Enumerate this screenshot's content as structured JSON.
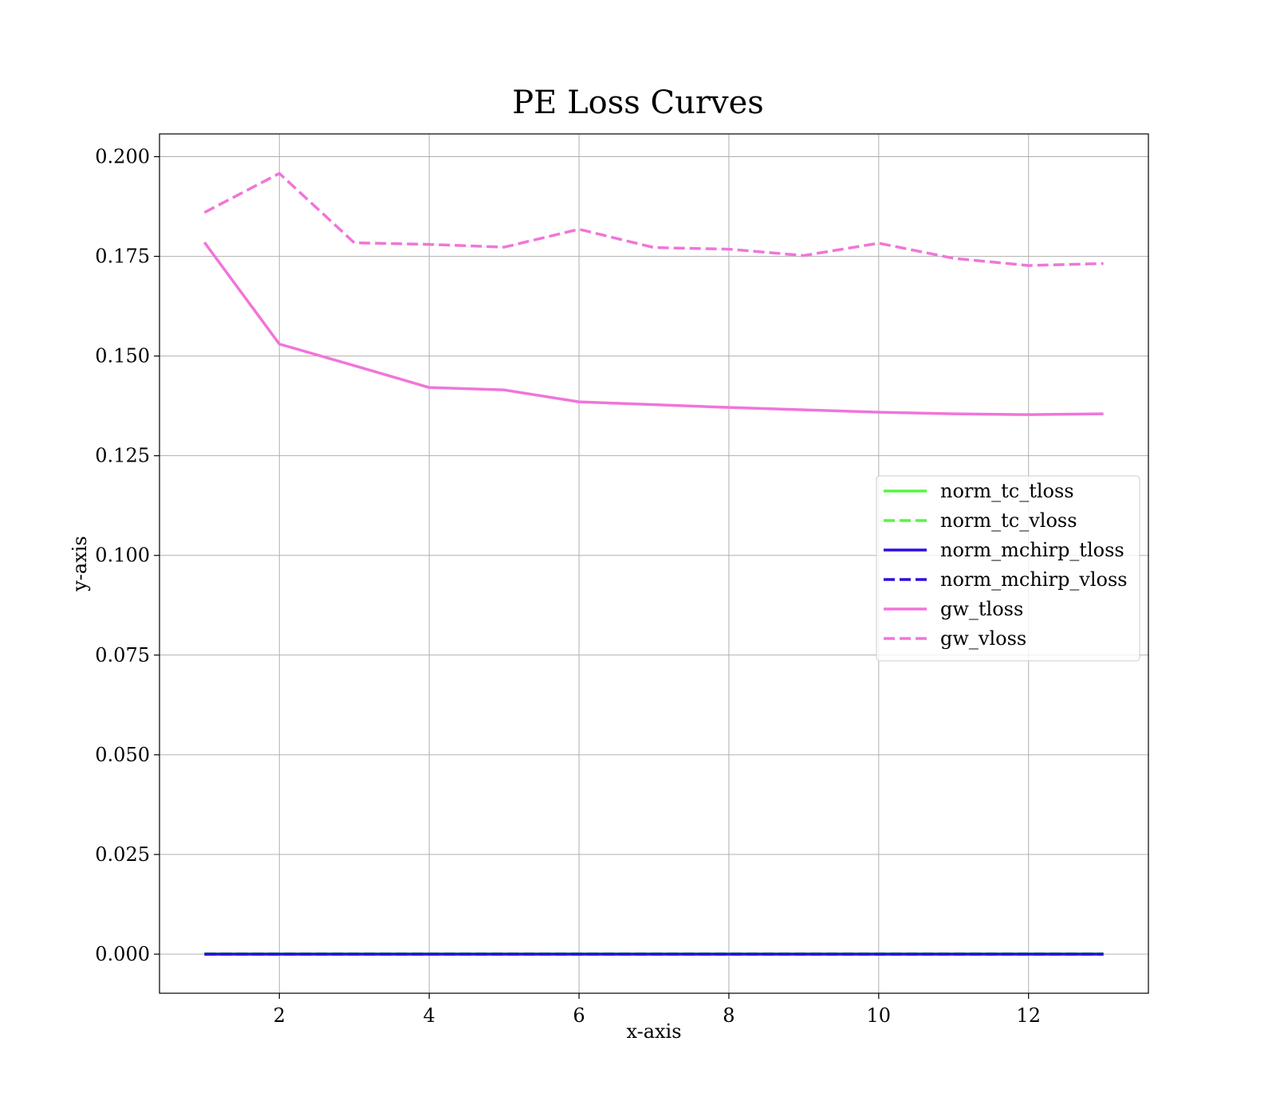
{
  "chart_data": {
    "type": "line",
    "title": "PE Loss Curves",
    "xlabel": "x-axis",
    "ylabel": "y-axis",
    "xlim": [
      0.4,
      13.6
    ],
    "ylim": [
      -0.0098,
      0.2057
    ],
    "xticks": [
      2,
      4,
      6,
      8,
      10,
      12
    ],
    "xtick_labels": [
      "2",
      "4",
      "6",
      "8",
      "10",
      "12"
    ],
    "yticks": [
      0,
      0.025,
      0.05,
      0.075,
      0.1,
      0.125,
      0.15,
      0.175,
      0.2
    ],
    "ytick_labels": [
      "0.000",
      "0.025",
      "0.050",
      "0.075",
      "0.100",
      "0.125",
      "0.150",
      "0.175",
      "0.200"
    ],
    "grid": true,
    "legend_position": "center-right",
    "x": [
      1,
      2,
      3,
      4,
      5,
      6,
      7,
      8,
      9,
      10,
      11,
      12,
      13
    ],
    "series": [
      {
        "name": "norm_tc_tloss",
        "color": "#55f542",
        "dash": "solid",
        "values": [
          0.0001,
          0.0001,
          0.0001,
          0.0001,
          0.0001,
          0.0001,
          0.0001,
          0.0001,
          0.0001,
          0.0001,
          0.0001,
          0.0001,
          0.0001
        ]
      },
      {
        "name": "norm_tc_vloss",
        "color": "#55f542",
        "dash": "dashed",
        "values": [
          0.0001,
          0.0001,
          0.0001,
          0.0001,
          0.0001,
          0.0001,
          0.0001,
          0.0001,
          0.0001,
          0.0001,
          0.0001,
          0.0001,
          0.0001
        ]
      },
      {
        "name": "norm_mchirp_tloss",
        "color": "#2a0fe0",
        "dash": "solid",
        "values": [
          0.0,
          0.0,
          0.0,
          0.0,
          0.0,
          0.0,
          0.0,
          0.0,
          0.0,
          0.0,
          0.0,
          0.0,
          0.0
        ]
      },
      {
        "name": "norm_mchirp_vloss",
        "color": "#2a0fe0",
        "dash": "dashed",
        "values": [
          0.0,
          0.0,
          0.0,
          0.0,
          0.0,
          0.0,
          0.0,
          0.0,
          0.0,
          0.0,
          0.0,
          0.0,
          0.0
        ]
      },
      {
        "name": "gw_tloss",
        "color": "#f075d9",
        "dash": "solid",
        "values": [
          0.1785,
          0.153,
          0.1476,
          0.1421,
          0.1415,
          0.1385,
          0.1378,
          0.1371,
          0.1365,
          0.1359,
          0.1355,
          0.1353,
          0.1355
        ]
      },
      {
        "name": "gw_vloss",
        "color": "#f075d9",
        "dash": "dashed",
        "values": [
          0.186,
          0.1958,
          0.1784,
          0.178,
          0.1773,
          0.1818,
          0.1772,
          0.1768,
          0.1752,
          0.1783,
          0.1745,
          0.1727,
          0.1732
        ]
      }
    ]
  }
}
